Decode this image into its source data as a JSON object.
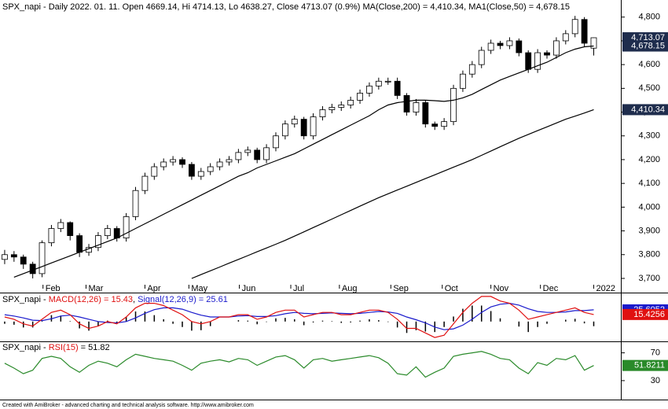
{
  "chart_data": [
    {
      "type": "candlestick",
      "title": "SPX_napi - Daily 2022. 01. 11. Open 4669.14, Hi 4714.13, Lo 4638.27, Close 4713.07 (0.9%) ",
      "annotations": [
        "MA(Close,200) = 4,410.34, ",
        "MA1(Close,50) = 4,678.15"
      ],
      "xlim": [
        -0.5,
        65.9
      ],
      "xticks": [
        {
          "value": 4.1,
          "label": "Feb"
        },
        {
          "value": 8.7,
          "label": "Mar"
        },
        {
          "value": 15,
          "label": "Apr"
        },
        {
          "value": 19.7,
          "label": "May"
        },
        {
          "value": 25.1,
          "label": "Jun"
        },
        {
          "value": 30.6,
          "label": "Jul"
        },
        {
          "value": 35.8,
          "label": "Aug"
        },
        {
          "value": 41.3,
          "label": "Sep"
        },
        {
          "value": 46.8,
          "label": "Oct"
        },
        {
          "value": 52,
          "label": "Nov"
        },
        {
          "value": 57.3,
          "label": "Dec"
        },
        {
          "value": 63,
          "label": "2022"
        }
      ],
      "ylim": [
        3680,
        4862
      ],
      "yticks": [
        {
          "value": 3700,
          "label": "3,700"
        },
        {
          "value": 3800,
          "label": "3,800"
        },
        {
          "value": 3900,
          "label": "3,900"
        },
        {
          "value": 4000,
          "label": "4,000"
        },
        {
          "value": 4100,
          "label": "4,100"
        },
        {
          "value": 4200,
          "label": "4,200"
        },
        {
          "value": 4300,
          "label": "4,300"
        },
        {
          "value": 4400,
          "label": "4,400"
        },
        {
          "value": 4500,
          "label": "4,500"
        },
        {
          "value": 4600,
          "label": "4,600"
        },
        {
          "value": 4700,
          "label": "4,700"
        },
        {
          "value": 4800,
          "label": "4,800"
        }
      ],
      "open": [
        3780,
        3800,
        3790,
        3760,
        3720,
        3850,
        3910,
        3935,
        3880,
        3810,
        3830,
        3880,
        3910,
        3870,
        3960,
        4070,
        4130,
        4170,
        4190,
        4200,
        4180,
        4130,
        4150,
        4170,
        4190,
        4200,
        4230,
        4240,
        4200,
        4250,
        4300,
        4350,
        4370,
        4300,
        4380,
        4410,
        4420,
        4430,
        4450,
        4480,
        4510,
        4530,
        4530,
        4470,
        4400,
        4440,
        4350,
        4340,
        4360,
        4500,
        4560,
        4600,
        4660,
        4690,
        4680,
        4700,
        4650,
        4580,
        4650,
        4640,
        4700,
        4730,
        4790,
        4669.14
      ],
      "high": [
        3820,
        3815,
        3800,
        3770,
        3860,
        3925,
        3950,
        3940,
        3890,
        3845,
        3895,
        3925,
        3920,
        3975,
        4085,
        4145,
        4185,
        4205,
        4215,
        4210,
        4190,
        4165,
        4185,
        4205,
        4215,
        4245,
        4255,
        4250,
        4265,
        4315,
        4365,
        4385,
        4380,
        4395,
        4425,
        4435,
        4445,
        4465,
        4495,
        4525,
        4545,
        4545,
        4545,
        4480,
        4455,
        4450,
        4360,
        4375,
        4515,
        4575,
        4615,
        4675,
        4705,
        4700,
        4715,
        4710,
        4660,
        4665,
        4660,
        4715,
        4745,
        4805,
        4800,
        4714.13
      ],
      "low": [
        3760,
        3770,
        3740,
        3700,
        3705,
        3835,
        3895,
        3860,
        3790,
        3795,
        3815,
        3865,
        3855,
        3855,
        3945,
        4055,
        4115,
        4155,
        4175,
        4165,
        4115,
        4115,
        4135,
        4155,
        4175,
        4185,
        4215,
        4185,
        4185,
        4235,
        4285,
        4335,
        4285,
        4285,
        4365,
        4395,
        4405,
        4415,
        4435,
        4465,
        4495,
        4515,
        4455,
        4385,
        4385,
        4335,
        4325,
        4325,
        4345,
        4485,
        4545,
        4585,
        4645,
        4665,
        4665,
        4635,
        4565,
        4565,
        4625,
        4625,
        4685,
        4715,
        4675,
        4638.27
      ],
      "close": [
        3800,
        3790,
        3760,
        3720,
        3850,
        3910,
        3935,
        3880,
        3810,
        3830,
        3880,
        3910,
        3870,
        3960,
        4070,
        4130,
        4170,
        4190,
        4200,
        4180,
        4130,
        4150,
        4170,
        4190,
        4200,
        4230,
        4240,
        4200,
        4250,
        4300,
        4350,
        4370,
        4300,
        4380,
        4410,
        4420,
        4430,
        4450,
        4480,
        4510,
        4530,
        4530,
        4470,
        4400,
        4440,
        4350,
        4340,
        4360,
        4500,
        4560,
        4600,
        4660,
        4690,
        4680,
        4700,
        4650,
        4580,
        4650,
        4640,
        4700,
        4730,
        4790,
        4690,
        4713.07
      ],
      "close_label": "4,713.07",
      "series": [
        {
          "color": "#000000",
          "value_label": "4,678.15",
          "values": [
            null,
            3705,
            3720,
            3735,
            3750,
            3765,
            3780,
            3795,
            3810,
            3825,
            3840,
            3855,
            3870,
            3890,
            3910,
            3930,
            3950,
            3970,
            3990,
            4010,
            4030,
            4050,
            4070,
            4090,
            4110,
            4130,
            4145,
            4165,
            4180,
            4195,
            4210,
            4225,
            4245,
            4265,
            4285,
            4305,
            4325,
            4345,
            4365,
            4385,
            4410,
            4430,
            4440,
            4445,
            4450,
            4450,
            4448,
            4445,
            4450,
            4460,
            4475,
            4495,
            4515,
            4535,
            4550,
            4565,
            4580,
            4595,
            4610,
            4630,
            4650,
            4665,
            4675,
            4678.15
          ]
        },
        {
          "color": "#000000",
          "value_label": "4,410.34",
          "values": [
            null,
            null,
            null,
            null,
            null,
            null,
            null,
            null,
            null,
            null,
            null,
            null,
            null,
            null,
            null,
            null,
            null,
            null,
            null,
            null,
            3700,
            3716,
            3732,
            3748,
            3764,
            3780,
            3796,
            3812,
            3828,
            3844,
            3860,
            3878,
            3896,
            3914,
            3932,
            3950,
            3968,
            3986,
            4004,
            4022,
            4040,
            4056,
            4072,
            4088,
            4104,
            4120,
            4136,
            4152,
            4168,
            4184,
            4200,
            4218,
            4236,
            4254,
            4272,
            4290,
            4306,
            4322,
            4338,
            4354,
            4370,
            4383,
            4396,
            4410.34
          ]
        }
      ]
    },
    {
      "type": "macd",
      "title": "SPX_napi - ",
      "annotations": [
        "MACD(12,26) = 15.43",
        ", ",
        "Signal(12,26,9) = 25.61"
      ],
      "xlim": [
        -0.5,
        65.9
      ],
      "ylim": [
        -40,
        60
      ],
      "histogram": {
        "color": "#000000",
        "values": [
          -5,
          -7,
          -13,
          -13,
          3,
          14,
          13,
          1,
          -15,
          -20,
          -10,
          2,
          -2,
          10,
          22,
          22,
          14,
          5,
          -5,
          -12,
          -20,
          -19,
          -10,
          0,
          0,
          3,
          2,
          -6,
          -1,
          7,
          8,
          5,
          -8,
          -2,
          2,
          1,
          -3,
          -2,
          2,
          5,
          3,
          -1,
          -13,
          -25,
          -19,
          -22,
          -23,
          -12,
          11,
          28,
          35,
          35,
          23,
          7,
          0,
          -11,
          -23,
          -12,
          -5,
          0,
          4,
          6,
          -4,
          -10.18
        ]
      },
      "series": [
        {
          "color": "#1a1acc",
          "value_label": "25.6052",
          "values": [
            15,
            12,
            8,
            3,
            2,
            6,
            12,
            14,
            10,
            5,
            0,
            -2,
            -3,
            0,
            8,
            18,
            26,
            30,
            30,
            27,
            20,
            14,
            10,
            10,
            10,
            12,
            13,
            11,
            11,
            13,
            17,
            20,
            18,
            17,
            18,
            19,
            18,
            17,
            18,
            20,
            22,
            21,
            18,
            10,
            4,
            -3,
            -12,
            -18,
            -16,
            -8,
            5,
            20,
            32,
            38,
            40,
            36,
            28,
            22,
            20,
            20,
            21,
            24,
            24,
            25.6052
          ]
        },
        {
          "color": "#e01010",
          "value_label": "15.4256",
          "values": [
            10,
            5,
            -5,
            -10,
            5,
            20,
            25,
            15,
            -5,
            -15,
            -10,
            0,
            -5,
            10,
            30,
            40,
            40,
            35,
            25,
            15,
            0,
            -5,
            0,
            10,
            10,
            15,
            15,
            5,
            10,
            20,
            25,
            25,
            10,
            15,
            20,
            20,
            15,
            15,
            20,
            25,
            25,
            20,
            5,
            -15,
            -15,
            -25,
            -35,
            -30,
            -5,
            20,
            40,
            55,
            55,
            45,
            40,
            25,
            5,
            10,
            15,
            20,
            25,
            30,
            20,
            15.4256
          ]
        }
      ]
    },
    {
      "type": "line",
      "title": "SPX_napi - ",
      "annotations": [
        "RSI(15)",
        " = 51.82"
      ],
      "xlim": [
        -0.5,
        65.9
      ],
      "ylim": [
        5,
        82
      ],
      "yticks": [
        70,
        30
      ],
      "series": [
        {
          "color": "#2a8a2a",
          "value_label": "51.8211",
          "values": [
            55,
            48,
            40,
            45,
            62,
            65,
            62,
            50,
            42,
            52,
            58,
            55,
            50,
            60,
            68,
            65,
            62,
            60,
            58,
            52,
            45,
            55,
            58,
            60,
            57,
            62,
            60,
            52,
            58,
            64,
            66,
            60,
            48,
            60,
            62,
            58,
            60,
            62,
            64,
            66,
            63,
            55,
            40,
            38,
            50,
            35,
            42,
            48,
            65,
            68,
            70,
            72,
            68,
            62,
            60,
            48,
            40,
            56,
            52,
            62,
            60,
            66,
            45,
            51.8211
          ]
        }
      ]
    }
  ],
  "footer": "Created with AmiBroker - advanced charting and technical analysis software. http://www.amibroker.com"
}
